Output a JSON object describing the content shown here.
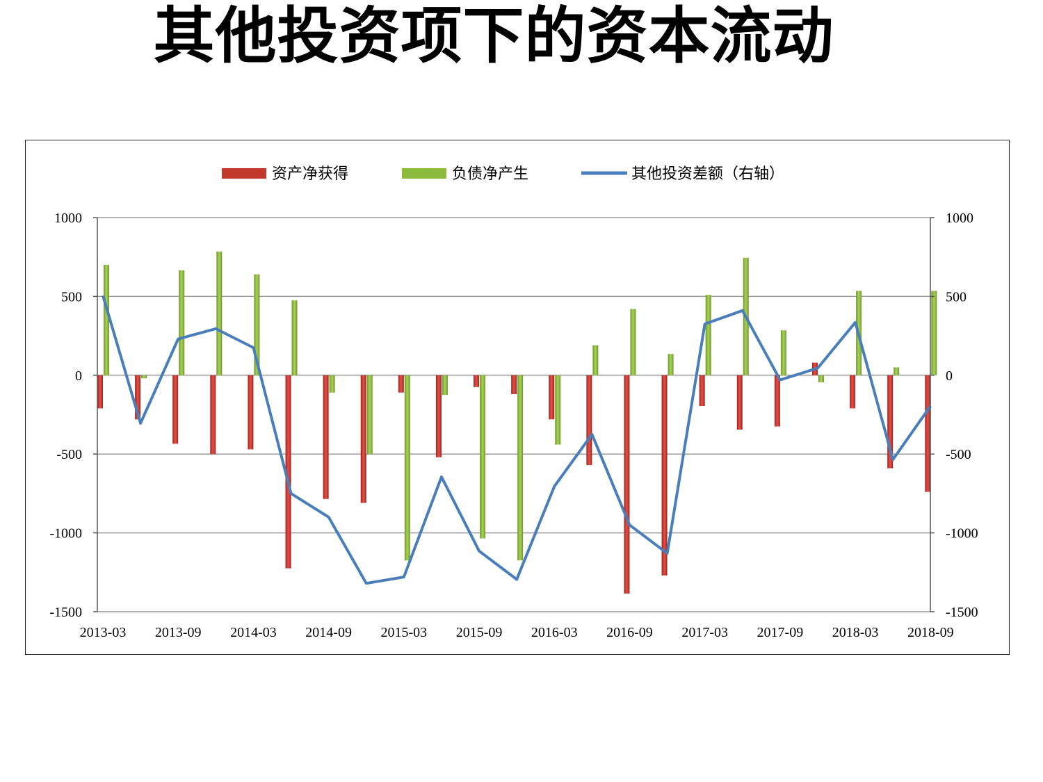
{
  "page": {
    "title": "其他投资项下的资本流动"
  },
  "chart_data": {
    "type": "bar",
    "title": "其他投资项下的资本流动",
    "xlabel": "",
    "ylabel": "",
    "x": [
      "2013-03",
      "2013-06",
      "2013-09",
      "2013-12",
      "2014-03",
      "2014-06",
      "2014-09",
      "2014-12",
      "2015-03",
      "2015-06",
      "2015-09",
      "2015-12",
      "2016-03",
      "2016-06",
      "2016-09",
      "2016-12",
      "2017-03",
      "2017-06",
      "2017-09",
      "2017-12",
      "2018-03",
      "2018-06",
      "2018-09"
    ],
    "x_tick_labels": [
      "2013-03",
      "2013-09",
      "2014-03",
      "2014-09",
      "2015-03",
      "2015-09",
      "2016-03",
      "2016-09",
      "2017-03",
      "2017-09",
      "2018-03",
      "2018-09"
    ],
    "ylim": [
      -1500,
      1000
    ],
    "y2lim": [
      -1500,
      1000
    ],
    "y_ticks": [
      "1000",
      "500",
      "0",
      "-500",
      "-1000",
      "-1500"
    ],
    "grid": true,
    "legend_position": "top",
    "series": [
      {
        "name": "资产净获得",
        "kind": "bar",
        "color": "#c0392b",
        "values": [
          -210,
          -280,
          -435,
          -500,
          -470,
          -1225,
          -785,
          -810,
          -110,
          -520,
          -75,
          -120,
          -280,
          -570,
          -1385,
          -1270,
          -195,
          -345,
          -325,
          80,
          -210,
          -590,
          -740
        ]
      },
      {
        "name": "负债净产生",
        "kind": "bar",
        "color": "#8cba3c",
        "values": [
          700,
          -20,
          665,
          785,
          640,
          475,
          -110,
          -500,
          -1175,
          -125,
          -1035,
          -1175,
          -440,
          190,
          420,
          135,
          510,
          745,
          285,
          -45,
          535,
          50,
          535
        ]
      },
      {
        "name": "其他投资差额（右轴）",
        "kind": "line",
        "axis": "right",
        "color": "#4a7ebb",
        "values": [
          505,
          -305,
          230,
          295,
          175,
          -750,
          -900,
          -1320,
          -1280,
          -645,
          -1115,
          -1295,
          -705,
          -375,
          -950,
          -1130,
          325,
          410,
          -30,
          45,
          335,
          -535,
          -195
        ]
      }
    ]
  }
}
